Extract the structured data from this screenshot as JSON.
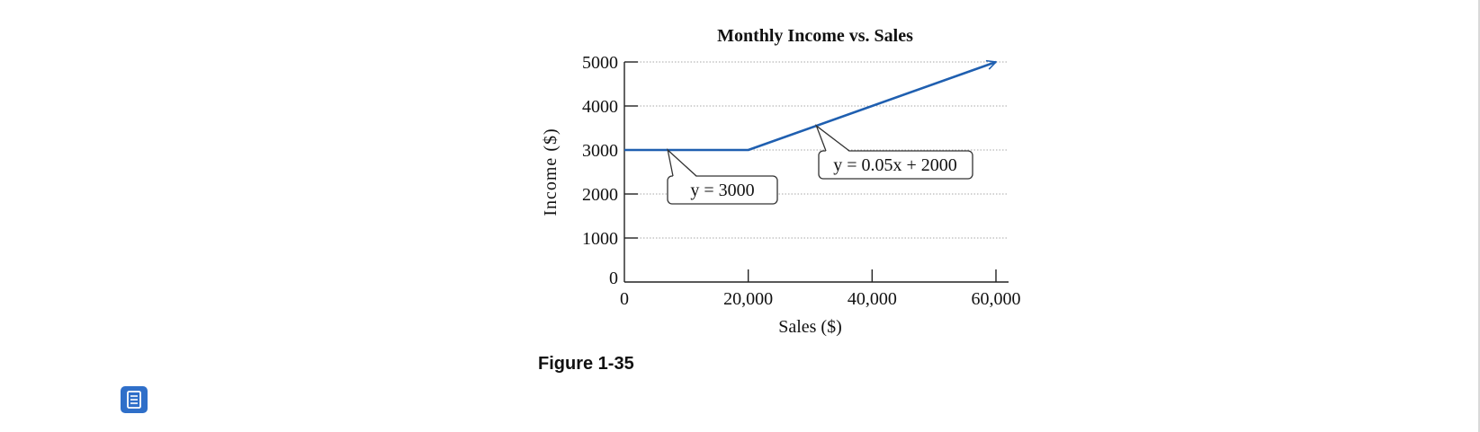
{
  "caption": "Figure 1-35",
  "toolbar": {
    "document_icon": "document-icon"
  },
  "colors": {
    "line": "#1f5fb0",
    "button": "#2f6fc9"
  },
  "chart_data": {
    "type": "line",
    "title": "Monthly Income vs. Sales",
    "xlabel": "Sales ($)",
    "ylabel": "Income ($)",
    "xlim": [
      0,
      60000
    ],
    "ylim": [
      0,
      5000
    ],
    "x_ticks": [
      {
        "value": 0,
        "label": "0"
      },
      {
        "value": 20000,
        "label": "20,000"
      },
      {
        "value": 40000,
        "label": "40,000"
      },
      {
        "value": 60000,
        "label": "60,000"
      }
    ],
    "y_ticks": [
      {
        "value": 0,
        "label": "0"
      },
      {
        "value": 1000,
        "label": "1000"
      },
      {
        "value": 2000,
        "label": "2000"
      },
      {
        "value": 3000,
        "label": "3000"
      },
      {
        "value": 4000,
        "label": "4000"
      },
      {
        "value": 5000,
        "label": "5000"
      }
    ],
    "grid": "horizontal-dotted",
    "series": [
      {
        "points": [
          {
            "x": 0,
            "y": 3000
          },
          {
            "x": 20000,
            "y": 3000
          },
          {
            "x": 60000,
            "y": 5000
          }
        ],
        "arrow_end": true
      }
    ],
    "annotations": [
      {
        "text": "y = 3000",
        "x": 7000,
        "y": 3000
      },
      {
        "text": "y = 0.05x + 2000",
        "x": 31000,
        "y": 3550
      }
    ]
  }
}
